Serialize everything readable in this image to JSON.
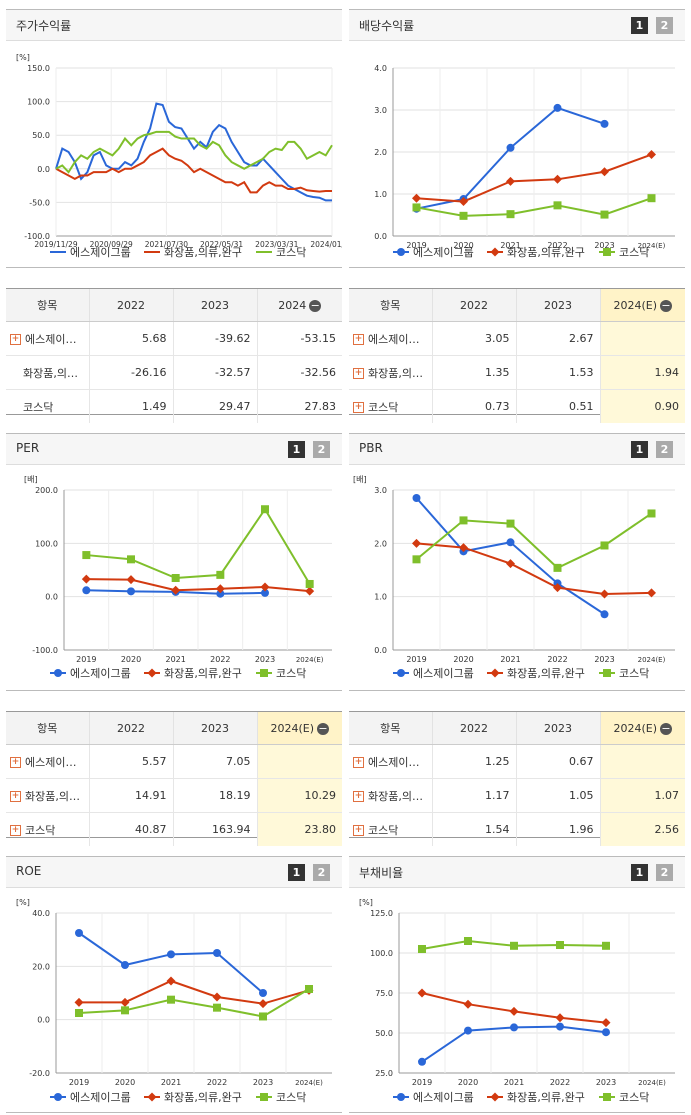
{
  "legend": {
    "a": "에스제이그룹",
    "b": "화장품,의류,완구",
    "c": "코스닥"
  },
  "colors": {
    "a": "#2a67d8",
    "b": "#d23a10",
    "c": "#7fbf2b"
  },
  "pages": {
    "p1": "1",
    "p2": "2"
  },
  "panels": {
    "stock": {
      "title": "주가수익률"
    },
    "dividend": {
      "title": "배당수익률"
    },
    "per": {
      "title": "PER"
    },
    "pbr": {
      "title": "PBR"
    },
    "roe": {
      "title": "ROE"
    },
    "debt": {
      "title": "부채비율"
    }
  },
  "tables": {
    "stock": {
      "head": [
        "항목",
        "2022",
        "2023",
        "2024"
      ],
      "rows": [
        [
          "에스제이…",
          "5.68",
          "-39.62",
          "-53.15"
        ],
        [
          "화장품,의…",
          "-26.16",
          "-32.57",
          "-32.56"
        ],
        [
          "코스닥",
          "1.49",
          "29.47",
          "27.83"
        ]
      ]
    },
    "dividend": {
      "head": [
        "항목",
        "2022",
        "2023",
        "2024(E)"
      ],
      "rows": [
        [
          "에스제이…",
          "3.05",
          "2.67",
          ""
        ],
        [
          "화장품,의…",
          "1.35",
          "1.53",
          "1.94"
        ],
        [
          "코스닥",
          "0.73",
          "0.51",
          "0.90"
        ]
      ]
    },
    "per": {
      "head": [
        "항목",
        "2022",
        "2023",
        "2024(E)"
      ],
      "rows": [
        [
          "에스제이…",
          "5.57",
          "7.05",
          ""
        ],
        [
          "화장품,의…",
          "14.91",
          "18.19",
          "10.29"
        ],
        [
          "코스닥",
          "40.87",
          "163.94",
          "23.80"
        ]
      ]
    },
    "pbr": {
      "head": [
        "항목",
        "2022",
        "2023",
        "2024(E)"
      ],
      "rows": [
        [
          "에스제이…",
          "1.25",
          "0.67",
          ""
        ],
        [
          "화장품,의…",
          "1.17",
          "1.05",
          "1.07"
        ],
        [
          "코스닥",
          "1.54",
          "1.96",
          "2.56"
        ]
      ]
    }
  },
  "chart_data": [
    {
      "id": "stock",
      "type": "line",
      "unit": "[%]",
      "ylim": [
        -100,
        150
      ],
      "yticks": [
        "150.0",
        "100.0",
        "50.0",
        "0.0",
        "-50.0",
        "-100.0"
      ],
      "xticks": [
        "2019/11/29",
        "2020/09/29",
        "2021/07/30",
        "2022/05/31",
        "2023/03/31",
        "2024/01/31"
      ],
      "series": [
        {
          "name": "에스제이그룹",
          "values": [
            0,
            30,
            25,
            10,
            -15,
            -5,
            20,
            25,
            5,
            0,
            0,
            10,
            5,
            15,
            40,
            60,
            97,
            95,
            70,
            62,
            60,
            45,
            30,
            40,
            32,
            55,
            65,
            60,
            40,
            25,
            10,
            5,
            5,
            15,
            5,
            -5,
            -15,
            -25,
            -30,
            -35,
            -40,
            -42,
            -43,
            -47,
            -47
          ]
        },
        {
          "name": "화장품,의류,완구",
          "values": [
            0,
            -5,
            -10,
            -15,
            -10,
            -10,
            -5,
            -5,
            -5,
            0,
            -5,
            0,
            0,
            5,
            10,
            20,
            25,
            30,
            20,
            15,
            12,
            5,
            -5,
            0,
            -5,
            -10,
            -15,
            -20,
            -20,
            -25,
            -20,
            -35,
            -35,
            -25,
            -20,
            -25,
            -25,
            -30,
            -30,
            -28,
            -32,
            -33,
            -34,
            -33,
            -33
          ]
        },
        {
          "name": "코스닥",
          "values": [
            0,
            5,
            -5,
            10,
            20,
            15,
            25,
            30,
            25,
            20,
            30,
            45,
            35,
            45,
            50,
            52,
            55,
            55,
            55,
            48,
            45,
            45,
            45,
            35,
            30,
            40,
            35,
            20,
            10,
            5,
            0,
            5,
            10,
            15,
            25,
            30,
            28,
            40,
            40,
            30,
            15,
            20,
            25,
            20,
            35
          ]
        }
      ]
    },
    {
      "id": "dividend",
      "type": "line",
      "unit": "",
      "ylim": [
        0,
        4
      ],
      "yticks": [
        "4.0",
        "3.0",
        "2.0",
        "1.0",
        "0.0"
      ],
      "categories": [
        "2019",
        "2020",
        "2021",
        "2022",
        "2023",
        "2024(E)"
      ],
      "series": [
        {
          "name": "에스제이그룹",
          "values": [
            0.65,
            0.88,
            2.1,
            3.05,
            2.67,
            null
          ]
        },
        {
          "name": "화장품,의류,완구",
          "values": [
            0.9,
            0.82,
            1.3,
            1.35,
            1.53,
            1.94
          ]
        },
        {
          "name": "코스닥",
          "values": [
            0.68,
            0.48,
            0.52,
            0.73,
            0.51,
            0.9
          ]
        }
      ]
    },
    {
      "id": "per",
      "type": "line",
      "unit": "[배]",
      "ylim": [
        -100,
        200
      ],
      "yticks": [
        "200.0",
        "100.0",
        "0.0",
        "-100.0"
      ],
      "categories": [
        "2019",
        "2020",
        "2021",
        "2022",
        "2023",
        "2024(E)"
      ],
      "series": [
        {
          "name": "에스제이그룹",
          "values": [
            12,
            10,
            9,
            5.57,
            7.05,
            null
          ]
        },
        {
          "name": "화장품,의류,완구",
          "values": [
            33,
            32,
            12,
            14.91,
            18.19,
            10.29
          ]
        },
        {
          "name": "코스닥",
          "values": [
            78,
            70,
            35,
            40.87,
            163.94,
            23.8
          ]
        }
      ]
    },
    {
      "id": "pbr",
      "type": "line",
      "unit": "[배]",
      "ylim": [
        0,
        3
      ],
      "yticks": [
        "3.0",
        "2.0",
        "1.0",
        "0.0"
      ],
      "categories": [
        "2019",
        "2020",
        "2021",
        "2022",
        "2023",
        "2024(E)"
      ],
      "series": [
        {
          "name": "에스제이그룹",
          "values": [
            2.85,
            1.85,
            2.02,
            1.25,
            0.67,
            null
          ]
        },
        {
          "name": "화장품,의류,완구",
          "values": [
            2.0,
            1.92,
            1.62,
            1.17,
            1.05,
            1.07
          ]
        },
        {
          "name": "코스닥",
          "values": [
            1.7,
            2.43,
            2.37,
            1.54,
            1.96,
            2.56
          ]
        }
      ]
    },
    {
      "id": "roe",
      "type": "line",
      "unit": "[%]",
      "ylim": [
        -20,
        40
      ],
      "yticks": [
        "40.0",
        "20.0",
        "0.0",
        "-20.0"
      ],
      "categories": [
        "2019",
        "2020",
        "2021",
        "2022",
        "2023",
        "2024(E)"
      ],
      "series": [
        {
          "name": "에스제이그룹",
          "values": [
            32.5,
            20.5,
            24.5,
            25,
            10,
            null
          ]
        },
        {
          "name": "화장품,의류,완구",
          "values": [
            6.5,
            6.5,
            14.5,
            8.5,
            6,
            11
          ]
        },
        {
          "name": "코스닥",
          "values": [
            2.5,
            3.5,
            7.5,
            4.5,
            1.2,
            11.5
          ]
        }
      ]
    },
    {
      "id": "debt",
      "type": "line",
      "unit": "[%]",
      "ylim": [
        25,
        125
      ],
      "yticks": [
        "125.0",
        "100.0",
        "75.0",
        "50.0",
        "25.0"
      ],
      "categories": [
        "2019",
        "2020",
        "2021",
        "2022",
        "2023",
        "2024(E)"
      ],
      "series": [
        {
          "name": "에스제이그룹",
          "values": [
            32,
            51.5,
            53.5,
            54,
            50.5,
            null
          ]
        },
        {
          "name": "화장품,의류,완구",
          "values": [
            75,
            68,
            63.5,
            59.5,
            56.5,
            null
          ]
        },
        {
          "name": "코스닥",
          "values": [
            102.5,
            107.5,
            104.5,
            105,
            104.5,
            null
          ]
        }
      ]
    }
  ]
}
